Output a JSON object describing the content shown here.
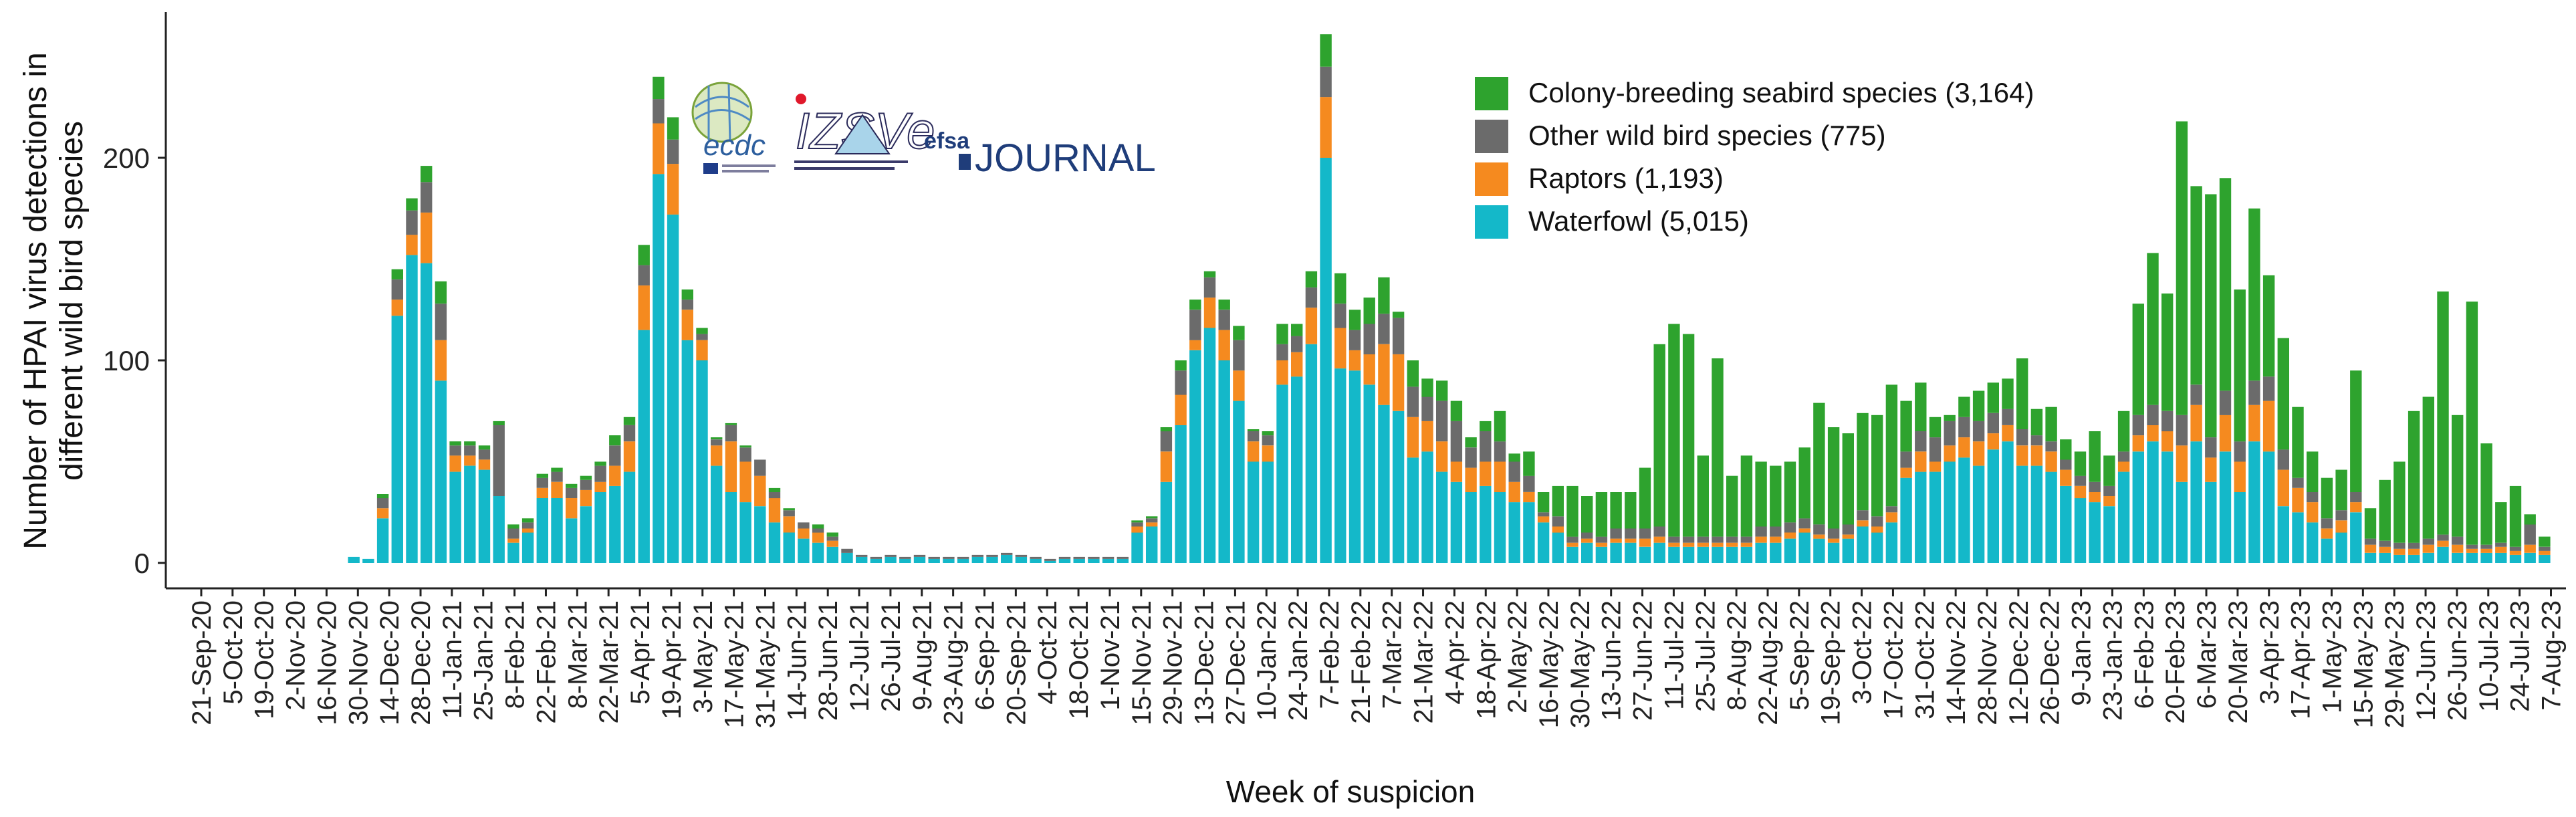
{
  "chart_data": {
    "type": "bar",
    "stacked": true,
    "title": "",
    "xlabel": "Week of suspicion",
    "ylabel": "Number of HPAI virus detections in different wild bird species",
    "ylabel_lines": [
      "Number of HPAI virus detections in",
      "different wild bird species"
    ],
    "ylim": [
      0,
      270
    ],
    "yticks": [
      0,
      100,
      200
    ],
    "legend_position": "top-right",
    "x_tick_labels": [
      "21-Sep-20",
      "5-Oct-20",
      "19-Oct-20",
      "2-Nov-20",
      "16-Nov-20",
      "30-Nov-20",
      "14-Dec-20",
      "28-Dec-20",
      "11-Jan-21",
      "25-Jan-21",
      "8-Feb-21",
      "22-Feb-21",
      "8-Mar-21",
      "22-Mar-21",
      "5-Apr-21",
      "19-Apr-21",
      "3-May-21",
      "17-May-21",
      "31-May-21",
      "14-Jun-21",
      "28-Jun-21",
      "12-Jul-21",
      "26-Jul-21",
      "9-Aug-21",
      "23-Aug-21",
      "6-Sep-21",
      "20-Sep-21",
      "4-Oct-21",
      "18-Oct-21",
      "1-Nov-21",
      "15-Nov-21",
      "29-Nov-21",
      "13-Dec-21",
      "27-Dec-21",
      "10-Jan-22",
      "24-Jan-22",
      "7-Feb-22",
      "21-Feb-22",
      "7-Mar-22",
      "21-Mar-22",
      "4-Apr-22",
      "18-Apr-22",
      "2-May-22",
      "16-May-22",
      "30-May-22",
      "13-Jun-22",
      "27-Jun-22",
      "11-Jul-22",
      "25-Jul-22",
      "8-Aug-22",
      "22-Aug-22",
      "5-Sep-22",
      "19-Sep-22",
      "3-Oct-22",
      "17-Oct-22",
      "31-Oct-22",
      "14-Nov-22",
      "28-Nov-22",
      "12-Dec-22",
      "26-Dec-22",
      "9-Jan-23",
      "23-Jan-23",
      "6-Feb-23",
      "20-Feb-23",
      "6-Mar-23",
      "20-Mar-23",
      "3-Apr-23",
      "17-Apr-23",
      "1-May-23",
      "15-May-23",
      "29-May-23",
      "12-Jun-23",
      "26-Jun-23",
      "10-Jul-23",
      "24-Jul-23",
      "7-Aug-23"
    ],
    "series": [
      {
        "name": "Waterfowl",
        "legend_label": "Waterfowl (5,015)",
        "color": "#14b8c9",
        "values": [
          0,
          0,
          0,
          0,
          0,
          3,
          2,
          22,
          122,
          152,
          148,
          90,
          45,
          48,
          46,
          33,
          10,
          15,
          32,
          32,
          22,
          28,
          35,
          38,
          45,
          115,
          192,
          172,
          110,
          100,
          48,
          35,
          30,
          28,
          20,
          15,
          12,
          10,
          8,
          5,
          3,
          2,
          3,
          2,
          3,
          2,
          2,
          2,
          3,
          3,
          4,
          3,
          2,
          1,
          2,
          2,
          2,
          2,
          2,
          15,
          18,
          40,
          68,
          105,
          116,
          100,
          80,
          50,
          50,
          88,
          92,
          108,
          200,
          96,
          95,
          88,
          78,
          75,
          52,
          55,
          45,
          40,
          35,
          38,
          35,
          30,
          30,
          20,
          15,
          8,
          10,
          8,
          10,
          10,
          8,
          10,
          8,
          8,
          8,
          8,
          8,
          8,
          10,
          10,
          12,
          15,
          12,
          10,
          12,
          18,
          15,
          20,
          42,
          45,
          45,
          50,
          52,
          48,
          56,
          60,
          48,
          48,
          45,
          38,
          32,
          30,
          28,
          45,
          55,
          60,
          55,
          40,
          60,
          40,
          55,
          35,
          60,
          55,
          28,
          25,
          20,
          12,
          15,
          25,
          5,
          5,
          4,
          4,
          5,
          8,
          5,
          5,
          5,
          5,
          4,
          5,
          4,
          0
        ]
      },
      {
        "name": "Raptors",
        "legend_label": "Raptors (1,193)",
        "color": "#f58a1f",
        "values": [
          0,
          0,
          0,
          0,
          0,
          0,
          0,
          5,
          8,
          10,
          25,
          20,
          8,
          5,
          5,
          0,
          2,
          2,
          5,
          8,
          10,
          8,
          5,
          10,
          15,
          22,
          25,
          25,
          15,
          10,
          10,
          25,
          20,
          15,
          12,
          8,
          5,
          5,
          3,
          0,
          0,
          0,
          0,
          0,
          0,
          0,
          0,
          0,
          0,
          0,
          0,
          0,
          0,
          0,
          0,
          0,
          0,
          0,
          0,
          3,
          2,
          15,
          15,
          5,
          15,
          15,
          15,
          10,
          8,
          12,
          12,
          18,
          30,
          20,
          10,
          15,
          30,
          28,
          20,
          15,
          15,
          10,
          12,
          12,
          15,
          10,
          5,
          3,
          3,
          2,
          2,
          2,
          2,
          2,
          4,
          3,
          2,
          2,
          2,
          2,
          2,
          2,
          3,
          3,
          3,
          2,
          2,
          2,
          2,
          3,
          3,
          5,
          5,
          10,
          5,
          8,
          10,
          12,
          8,
          8,
          10,
          10,
          10,
          8,
          6,
          5,
          5,
          5,
          8,
          8,
          10,
          18,
          18,
          12,
          18,
          15,
          18,
          25,
          18,
          12,
          10,
          5,
          6,
          5,
          4,
          3,
          3,
          3,
          4,
          3,
          4,
          2,
          2,
          3,
          2,
          4,
          2,
          0
        ]
      },
      {
        "name": "Other wild bird species",
        "legend_label": "Other wild bird species (775)",
        "color": "#6b6b6b",
        "values": [
          0,
          0,
          0,
          0,
          0,
          0,
          0,
          5,
          10,
          12,
          15,
          18,
          5,
          5,
          5,
          35,
          5,
          3,
          5,
          5,
          5,
          5,
          8,
          10,
          8,
          10,
          12,
          12,
          5,
          3,
          3,
          8,
          7,
          8,
          3,
          3,
          3,
          2,
          2,
          2,
          1,
          1,
          1,
          1,
          1,
          1,
          1,
          1,
          1,
          1,
          1,
          1,
          1,
          1,
          1,
          1,
          1,
          1,
          1,
          2,
          2,
          10,
          12,
          15,
          10,
          10,
          15,
          5,
          5,
          8,
          8,
          10,
          15,
          12,
          10,
          15,
          15,
          18,
          15,
          12,
          20,
          20,
          10,
          15,
          10,
          10,
          8,
          2,
          5,
          3,
          3,
          3,
          5,
          5,
          5,
          5,
          3,
          3,
          3,
          3,
          3,
          3,
          5,
          5,
          5,
          5,
          5,
          5,
          5,
          5,
          5,
          3,
          8,
          10,
          12,
          12,
          10,
          10,
          10,
          8,
          8,
          5,
          5,
          5,
          5,
          5,
          5,
          5,
          10,
          10,
          10,
          15,
          10,
          10,
          12,
          10,
          12,
          12,
          10,
          5,
          5,
          5,
          5,
          5,
          3,
          3,
          3,
          3,
          3,
          3,
          4,
          2,
          2,
          2,
          2,
          10,
          2,
          0
        ]
      },
      {
        "name": "Colony-breeding seabird species",
        "legend_label": "Colony-breeding seabird species (3,164)",
        "color": "#2ea32e",
        "values": [
          0,
          0,
          0,
          0,
          0,
          0,
          0,
          2,
          5,
          6,
          8,
          11,
          2,
          2,
          2,
          2,
          2,
          2,
          2,
          2,
          2,
          2,
          2,
          5,
          4,
          10,
          11,
          11,
          5,
          3,
          1,
          1,
          1,
          0,
          2,
          1,
          0,
          2,
          2,
          0,
          0,
          0,
          0,
          0,
          0,
          0,
          0,
          0,
          0,
          0,
          0,
          0,
          0,
          0,
          0,
          0,
          0,
          0,
          0,
          1,
          1,
          2,
          5,
          5,
          3,
          5,
          7,
          1,
          2,
          10,
          6,
          8,
          16,
          15,
          10,
          13,
          18,
          3,
          13,
          9,
          10,
          10,
          5,
          5,
          15,
          4,
          12,
          10,
          15,
          25,
          18,
          22,
          18,
          18,
          30,
          90,
          105,
          100,
          40,
          88,
          30,
          40,
          32,
          30,
          30,
          35,
          60,
          50,
          45,
          48,
          50,
          60,
          25,
          24,
          10,
          3,
          10,
          15,
          15,
          15,
          35,
          13,
          17,
          10,
          12,
          25,
          15,
          20,
          55,
          75,
          58,
          145,
          98,
          120,
          105,
          75,
          85,
          50,
          55,
          35,
          20,
          20,
          20,
          60,
          15,
          30,
          40,
          65,
          70,
          120,
          60,
          120,
          50,
          20,
          30,
          5,
          5
        ]
      }
    ],
    "annotations": {
      "logo_text": [
        "ecdc",
        "IZSVe",
        "efsa",
        "JOURNAL"
      ]
    }
  }
}
